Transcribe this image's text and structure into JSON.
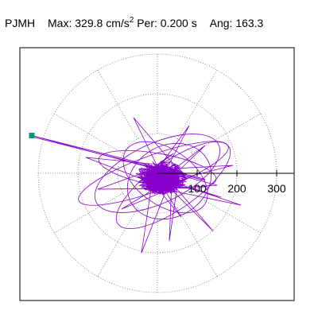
{
  "header": {
    "station": "PJMH",
    "max_label": "Max:",
    "max_value": "329.8",
    "max_unit_base": "cm/s",
    "max_unit_exp": "2",
    "per_label": "Per:",
    "per_value": "0.200 s",
    "ang_label": "Ang:",
    "ang_value": "163.3"
  },
  "chart_data": {
    "type": "scatter",
    "projection": "polar",
    "title": "PJMH  Max: 329.8 cm/s2  Per: 0.200 s  Ang: 163.3",
    "max_amplitude": 329.8,
    "max_angle_deg": 163.3,
    "period_s": 0.2,
    "radial_range": [
      0,
      350
    ],
    "ring_values": [
      100,
      200,
      300
    ],
    "tick_labels": [
      "100",
      "200",
      "300"
    ],
    "spoke_step_deg": 30,
    "grid": true,
    "trace_color": "#8800cc",
    "marker_color": "#009977",
    "peak_point": {
      "x": -316,
      "y": 95
    },
    "trace_anchor_points": [
      {
        "x": -316,
        "y": 95
      },
      {
        "x": 40,
        "y": 50
      },
      {
        "x": 150,
        "y": -30
      },
      {
        "x": 210,
        "y": -80
      },
      {
        "x": -180,
        "y": 40
      },
      {
        "x": 60,
        "y": -110
      },
      {
        "x": 140,
        "y": -145
      },
      {
        "x": -60,
        "y": 140
      },
      {
        "x": 80,
        "y": 120
      },
      {
        "x": -150,
        "y": -40
      },
      {
        "x": 190,
        "y": 20
      },
      {
        "x": 30,
        "y": -170
      },
      {
        "x": -90,
        "y": -90
      },
      {
        "x": 120,
        "y": 70
      },
      {
        "x": -40,
        "y": -200
      },
      {
        "x": 160,
        "y": -60
      }
    ]
  }
}
